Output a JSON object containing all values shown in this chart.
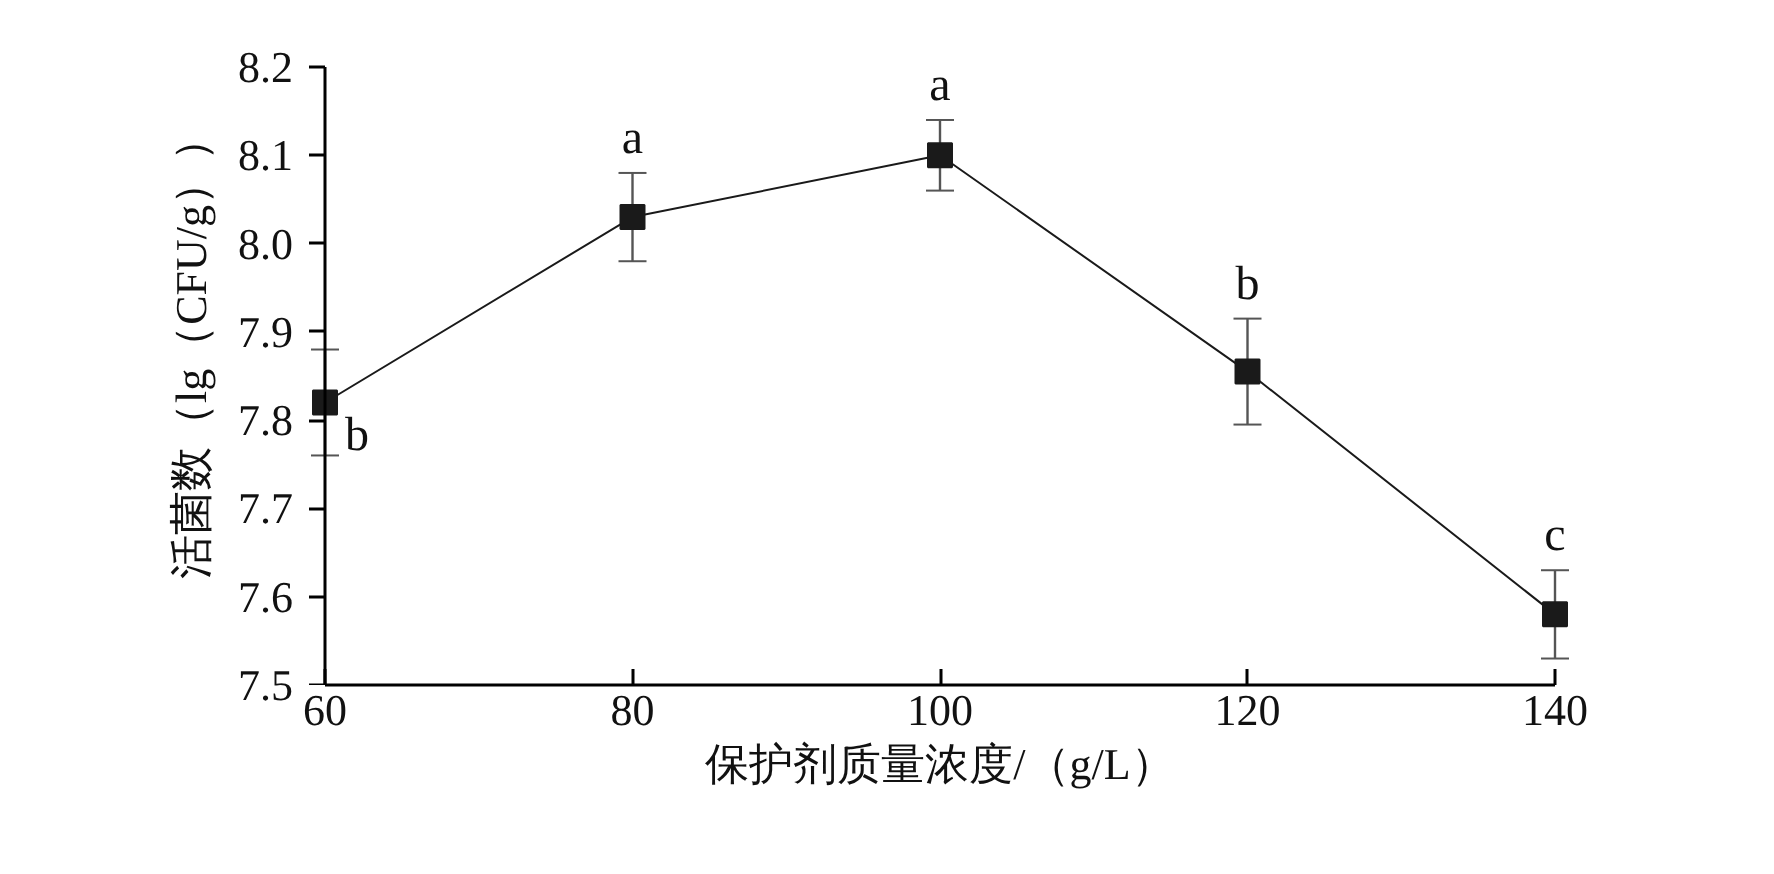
{
  "chart_data": {
    "type": "line",
    "xlabel": "保护剂质量浓度/（g/L）",
    "ylabel": "活菌数（lg（CFU/g））",
    "x": [
      60,
      80,
      100,
      120,
      140
    ],
    "series": [
      {
        "color": "#1a1a1a",
        "values": [
          7.82,
          8.03,
          8.1,
          7.855,
          7.58
        ],
        "errors": [
          0.06,
          0.05,
          0.04,
          0.06,
          0.05
        ]
      }
    ],
    "xlim": [
      60,
      140
    ],
    "xticks": [
      60,
      80,
      100,
      120,
      140
    ],
    "ylim": [
      7.5,
      8.2
    ],
    "yticks": [
      7.5,
      7.6,
      7.7,
      7.8,
      7.9,
      {
        "value": 8.0,
        "label": "8.0"
      },
      8.1,
      8.2
    ],
    "marker": "square",
    "line_style": "solid",
    "grid": false,
    "annotations": [
      {
        "text": "b",
        "x": 60,
        "y": 7.82
      },
      {
        "text": "a",
        "x": 80,
        "y": 8.03
      },
      {
        "text": "a",
        "x": 100,
        "y": 8.1
      },
      {
        "text": "b",
        "x": 120,
        "y": 7.855
      },
      {
        "text": "c",
        "x": 140,
        "y": 7.58
      }
    ]
  }
}
